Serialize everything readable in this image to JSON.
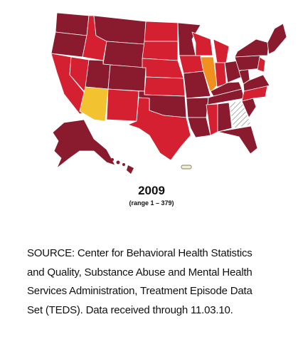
{
  "map": {
    "title": "2009",
    "subtitle": "(range 1 – 379)"
  },
  "source_lines": [
    "SOURCE: Center for Behavioral Health Statistics",
    "and Quality, Substance Abuse and Mental Health",
    "Services Administration, Treatment Episode Data",
    "Set (TEDS). Data received through 11.03.10."
  ]
}
